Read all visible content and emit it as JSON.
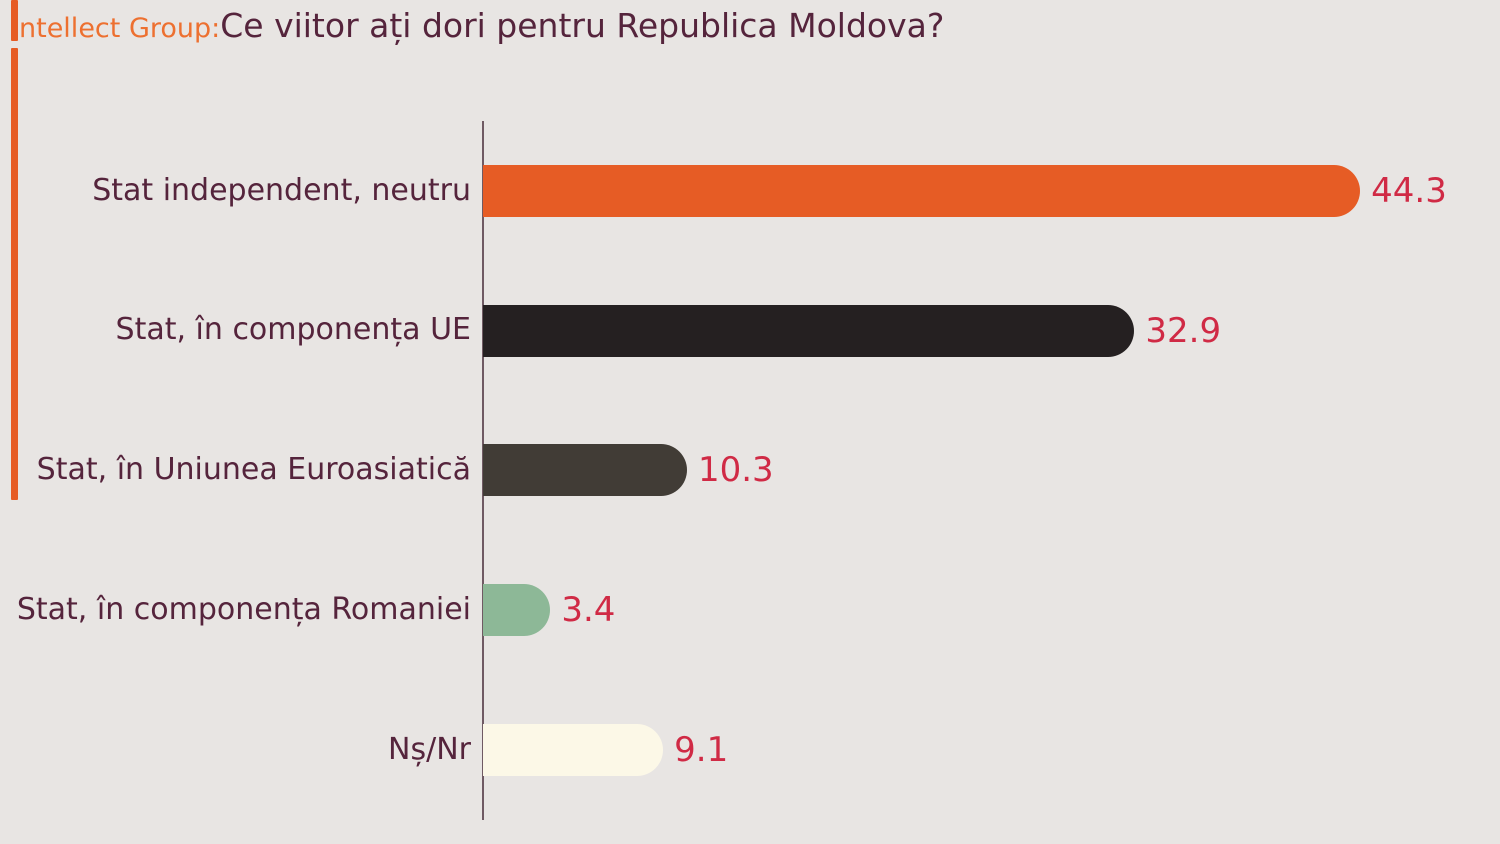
{
  "header": {
    "brand": "ntellect Group:",
    "title": "Ce viitor ați dori pentru Republica Moldova?"
  },
  "chart_data": {
    "type": "bar",
    "orientation": "horizontal",
    "title": "Ce viitor ați dori pentru Republica Moldova?",
    "categories": [
      "Stat independent, neutru",
      "Stat, în componența UE",
      "Stat, în Uniunea Euroasiatică",
      "Stat, în componența Romaniei",
      "Nș/Nr"
    ],
    "values": [
      44.3,
      32.9,
      10.3,
      3.4,
      9.1
    ],
    "bar_colors": [
      "#e65c25",
      "#252021",
      "#413c36",
      "#8db897",
      "#fcf8e7"
    ],
    "xlim": [
      0,
      45
    ],
    "grid": false,
    "legend": false,
    "value_labels": true
  },
  "colors": {
    "background": "#e8e5e3",
    "accent_orange": "#e65c25",
    "brand_text": "#ed7030",
    "title_text": "#55243c",
    "category_text": "#55243c",
    "value_text": "#d02a45",
    "axis_line": "#6f5a63"
  }
}
